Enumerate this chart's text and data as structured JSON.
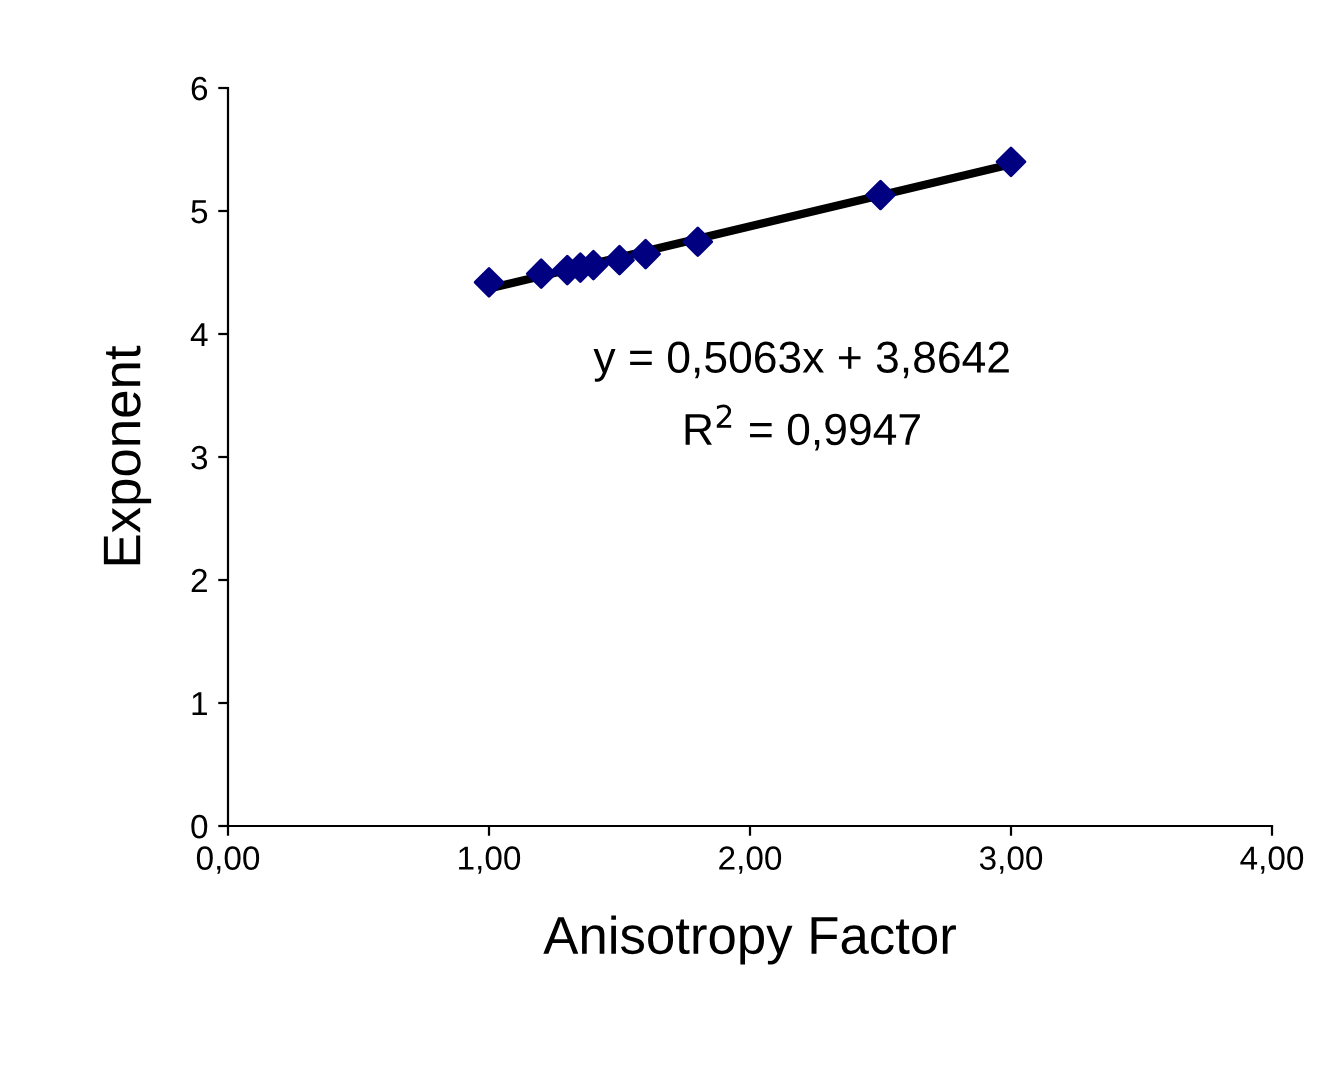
{
  "chart_data": {
    "type": "scatter",
    "xlabel": "Anisotropy Factor",
    "ylabel": "Exponent",
    "series": [
      {
        "color": "#000080",
        "marker": "diamond",
        "x": [
          1.0,
          1.2,
          1.3,
          1.35,
          1.4,
          1.5,
          1.6,
          1.8,
          2.5,
          3.0
        ],
        "values": [
          4.42,
          4.49,
          4.52,
          4.54,
          4.56,
          4.6,
          4.65,
          4.75,
          5.13,
          5.4
        ]
      },
      {
        "type": "line",
        "color": "#000000",
        "marker": "none",
        "x": [
          1.0,
          3.0
        ],
        "values": [
          4.37,
          5.38
        ]
      }
    ],
    "annotations": [
      "y = 0,5063x + 3,8642",
      "R$^{2}$ = 0,9947"
    ],
    "xlim": [
      0,
      4
    ],
    "xticks": [
      {
        "value": 0,
        "label": "0,00"
      },
      {
        "value": 1,
        "label": "1,00"
      },
      {
        "value": 2,
        "label": "2,00"
      },
      {
        "value": 3,
        "label": "3,00"
      },
      {
        "value": 4,
        "label": "4,00"
      }
    ],
    "ylim": [
      0,
      6
    ],
    "yticks": [
      0,
      1,
      2,
      3,
      4,
      5,
      6
    ],
    "grid": false,
    "legend": false
  }
}
